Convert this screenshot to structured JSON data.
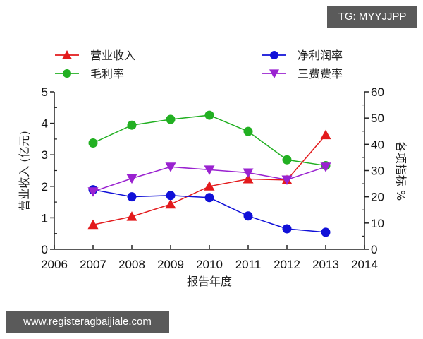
{
  "watermarks": {
    "tg": "TG: MYYJJPP",
    "url": "www.registeragbaijiale.com"
  },
  "colors": {
    "revenue": "#e31a1c",
    "gross_margin": "#22b022",
    "net_margin": "#1010d8",
    "expense_ratio": "#9a22d0",
    "axis": "#222222",
    "badge_bg": "#5a5a5a"
  },
  "chart_data": {
    "type": "line",
    "title": "",
    "xlabel": "报告年度",
    "ylabel": "营业收入 (亿元)",
    "y2label": "各项指标 %",
    "xlim": [
      2006,
      2014
    ],
    "ylim": [
      0,
      5
    ],
    "y2lim": [
      0,
      60
    ],
    "grid": false,
    "legend_position": "top",
    "x": [
      2007,
      2008,
      2009,
      2010,
      2011,
      2012,
      2013
    ],
    "x_ticks": [
      "2006",
      "2007",
      "2008",
      "2009",
      "2010",
      "2011",
      "2012",
      "2013",
      "2014"
    ],
    "y_ticks": [
      "0",
      "1",
      "2",
      "3",
      "4",
      "5"
    ],
    "y2_ticks": [
      "0",
      "10",
      "20",
      "30",
      "40",
      "50",
      "60"
    ],
    "series": [
      {
        "name": "营业收入",
        "axis": "left",
        "marker": "triangle-up",
        "color": "#e31a1c",
        "values": [
          0.78,
          1.04,
          1.43,
          2.0,
          2.23,
          2.2,
          3.63
        ]
      },
      {
        "name": "毛利率",
        "axis": "right",
        "marker": "circle",
        "color": "#22b022",
        "values": [
          40.5,
          47.3,
          49.5,
          51.1,
          44.9,
          34.1,
          31.9
        ]
      },
      {
        "name": "净利润率",
        "axis": "right",
        "marker": "circle",
        "color": "#1010d8",
        "values": [
          22.7,
          20.0,
          20.5,
          19.7,
          12.7,
          7.8,
          6.5
        ]
      },
      {
        "name": "三费费率",
        "axis": "right",
        "marker": "triangle-down",
        "color": "#9a22d0",
        "values": [
          22.0,
          27.0,
          31.4,
          30.3,
          29.2,
          26.5,
          31.4
        ]
      }
    ]
  }
}
